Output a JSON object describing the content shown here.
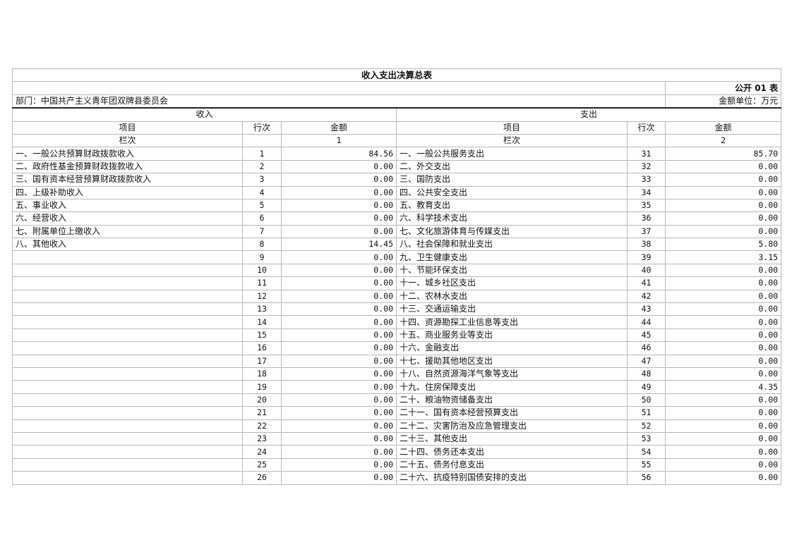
{
  "title": "收入支出决算总表",
  "form_no": "公开 01 表",
  "department": "部门：中国共产主义青年团双牌县委员会",
  "unit": "金额单位：万元",
  "income_header": "收入",
  "expense_header": "支出",
  "col_item": "项目",
  "col_line": "行次",
  "col_amount": "金额",
  "col_lanci": "栏次",
  "income_col_no": "1",
  "expense_col_no": "2",
  "rows": [
    {
      "in_item": "一、一般公共预算财政拨款收入",
      "in_line": "1",
      "in_amt": "84.56",
      "ex_item": "一、一般公共服务支出",
      "ex_line": "31",
      "ex_amt": "85.70"
    },
    {
      "in_item": "二、政府性基金预算财政拨款收入",
      "in_line": "2",
      "in_amt": "0.00",
      "ex_item": "二、外交支出",
      "ex_line": "32",
      "ex_amt": "0.00"
    },
    {
      "in_item": "三、国有资本经营预算财政拨款收入",
      "in_line": "3",
      "in_amt": "0.00",
      "ex_item": "三、国防支出",
      "ex_line": "33",
      "ex_amt": "0.00"
    },
    {
      "in_item": "四、上级补助收入",
      "in_line": "4",
      "in_amt": "0.00",
      "ex_item": "四、公共安全支出",
      "ex_line": "34",
      "ex_amt": "0.00"
    },
    {
      "in_item": "五、事业收入",
      "in_line": "5",
      "in_amt": "0.00",
      "ex_item": "五、教育支出",
      "ex_line": "35",
      "ex_amt": "0.00"
    },
    {
      "in_item": "六、经营收入",
      "in_line": "6",
      "in_amt": "0.00",
      "ex_item": "六、科学技术支出",
      "ex_line": "36",
      "ex_amt": "0.00"
    },
    {
      "in_item": "七、附属单位上缴收入",
      "in_line": "7",
      "in_amt": "0.00",
      "ex_item": "七、文化旅游体育与传媒支出",
      "ex_line": "37",
      "ex_amt": "0.00"
    },
    {
      "in_item": "八、其他收入",
      "in_line": "8",
      "in_amt": "14.45",
      "ex_item": "八、社会保障和就业支出",
      "ex_line": "38",
      "ex_amt": "5.80"
    },
    {
      "in_item": "",
      "in_line": "9",
      "in_amt": "0.00",
      "ex_item": "九、卫生健康支出",
      "ex_line": "39",
      "ex_amt": "3.15"
    },
    {
      "in_item": "",
      "in_line": "10",
      "in_amt": "0.00",
      "ex_item": "十、节能环保支出",
      "ex_line": "40",
      "ex_amt": "0.00"
    },
    {
      "in_item": "",
      "in_line": "11",
      "in_amt": "0.00",
      "ex_item": "十一、城乡社区支出",
      "ex_line": "41",
      "ex_amt": "0.00"
    },
    {
      "in_item": "",
      "in_line": "12",
      "in_amt": "0.00",
      "ex_item": "十二、农林水支出",
      "ex_line": "42",
      "ex_amt": "0.00"
    },
    {
      "in_item": "",
      "in_line": "13",
      "in_amt": "0.00",
      "ex_item": "十三、交通运输支出",
      "ex_line": "43",
      "ex_amt": "0.00"
    },
    {
      "in_item": "",
      "in_line": "14",
      "in_amt": "0.00",
      "ex_item": "十四、资源勘探工业信息等支出",
      "ex_line": "44",
      "ex_amt": "0.00"
    },
    {
      "in_item": "",
      "in_line": "15",
      "in_amt": "0.00",
      "ex_item": "十五、商业服务业等支出",
      "ex_line": "45",
      "ex_amt": "0.00"
    },
    {
      "in_item": "",
      "in_line": "16",
      "in_amt": "0.00",
      "ex_item": "十六、金融支出",
      "ex_line": "46",
      "ex_amt": "0.00"
    },
    {
      "in_item": "",
      "in_line": "17",
      "in_amt": "0.00",
      "ex_item": "十七、援助其他地区支出",
      "ex_line": "47",
      "ex_amt": "0.00"
    },
    {
      "in_item": "",
      "in_line": "18",
      "in_amt": "0.00",
      "ex_item": "十八、自然资源海洋气象等支出",
      "ex_line": "48",
      "ex_amt": "0.00"
    },
    {
      "in_item": "",
      "in_line": "19",
      "in_amt": "0.00",
      "ex_item": "十九、住房保障支出",
      "ex_line": "49",
      "ex_amt": "4.35"
    },
    {
      "in_item": "",
      "in_line": "20",
      "in_amt": "0.00",
      "ex_item": "二十、粮油物资储备支出",
      "ex_line": "50",
      "ex_amt": "0.00"
    },
    {
      "in_item": "",
      "in_line": "21",
      "in_amt": "0.00",
      "ex_item": "二十一、国有资本经营预算支出",
      "ex_line": "51",
      "ex_amt": "0.00"
    },
    {
      "in_item": "",
      "in_line": "22",
      "in_amt": "0.00",
      "ex_item": "二十二、灾害防治及应急管理支出",
      "ex_line": "52",
      "ex_amt": "0.00"
    },
    {
      "in_item": "",
      "in_line": "23",
      "in_amt": "0.00",
      "ex_item": "二十三、其他支出",
      "ex_line": "53",
      "ex_amt": "0.00"
    },
    {
      "in_item": "",
      "in_line": "24",
      "in_amt": "0.00",
      "ex_item": "二十四、债务还本支出",
      "ex_line": "54",
      "ex_amt": "0.00"
    },
    {
      "in_item": "",
      "in_line": "25",
      "in_amt": "0.00",
      "ex_item": "二十五、债务付息支出",
      "ex_line": "55",
      "ex_amt": "0.00"
    },
    {
      "in_item": "",
      "in_line": "26",
      "in_amt": "0.00",
      "ex_item": "二十六、抗疫特别国债安排的支出",
      "ex_line": "56",
      "ex_amt": "0.00"
    }
  ]
}
